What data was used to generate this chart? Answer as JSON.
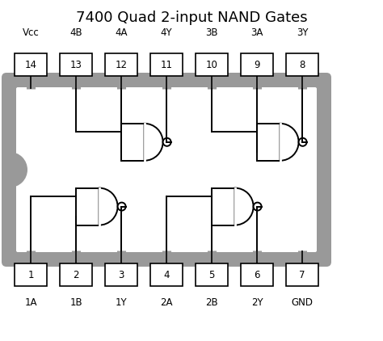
{
  "title": "7400 Quad 2-input NAND Gates",
  "title_fontsize": 13,
  "bg_color": "#ffffff",
  "chip_gray": "#999999",
  "chip_white": "#ffffff",
  "line_color": "#000000",
  "top_pins": [
    {
      "num": "14",
      "label": "Vcc",
      "xi": 0
    },
    {
      "num": "13",
      "label": "4B",
      "xi": 1
    },
    {
      "num": "12",
      "label": "4A",
      "xi": 2
    },
    {
      "num": "11",
      "label": "4Y",
      "xi": 3
    },
    {
      "num": "10",
      "label": "3B",
      "xi": 4
    },
    {
      "num": "9",
      "label": "3A",
      "xi": 5
    },
    {
      "num": "8",
      "label": "3Y",
      "xi": 6
    }
  ],
  "bottom_pins": [
    {
      "num": "1",
      "label": "1A",
      "xi": 0
    },
    {
      "num": "2",
      "label": "1B",
      "xi": 1
    },
    {
      "num": "3",
      "label": "1Y",
      "xi": 2
    },
    {
      "num": "4",
      "label": "2A",
      "xi": 3
    },
    {
      "num": "5",
      "label": "2B",
      "xi": 4
    },
    {
      "num": "6",
      "label": "2Y",
      "xi": 5
    },
    {
      "num": "7",
      "label": "GND",
      "xi": 6
    }
  ]
}
